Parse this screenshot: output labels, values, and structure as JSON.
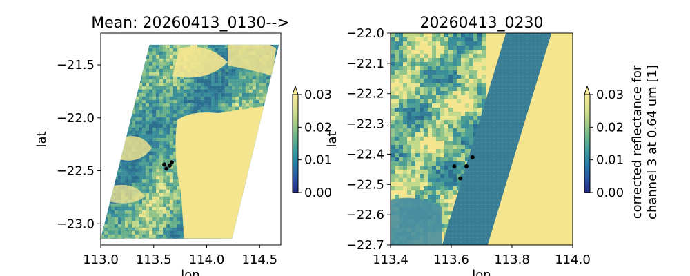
{
  "chart_data": [
    {
      "type": "heatmap",
      "title": "Mean: 20260413_0130-->",
      "xlabel": "lon",
      "ylabel": "lat",
      "xlim": [
        113.0,
        114.7
      ],
      "ylim": [
        -23.2,
        -21.2
      ],
      "xticks": [
        113.0,
        113.5,
        114.0,
        114.5
      ],
      "xtick_labels": [
        "113.0",
        "113.5",
        "114.0",
        "114.5"
      ],
      "yticks": [
        -21.5,
        -22.0,
        -22.5,
        -23.0
      ],
      "ytick_labels": [
        "−21.5",
        "−22.0",
        "−22.5",
        "−23.0"
      ],
      "swath_corners": [
        [
          113.46,
          -21.31
        ],
        [
          114.68,
          -21.31
        ],
        [
          114.24,
          -23.14
        ],
        [
          113.0,
          -23.14
        ]
      ],
      "cloud_free_region": {
        "lon_min": 113.72,
        "lat_min": -23.14,
        "lat_max": -21.93
      },
      "markers": [
        {
          "lon": 113.6,
          "lat": -22.44
        },
        {
          "lon": 113.62,
          "lat": -22.48
        },
        {
          "lon": 113.65,
          "lat": -22.45
        },
        {
          "lon": 113.67,
          "lat": -22.42
        }
      ],
      "colorbar": {
        "vmin": 0.0,
        "vmax": 0.03,
        "ticks": [
          0.0,
          0.01,
          0.02,
          0.03
        ],
        "tick_labels": [
          "0.00",
          "0.01",
          "0.02",
          "0.03"
        ],
        "extend": "max",
        "label": ""
      }
    },
    {
      "type": "heatmap",
      "title": "20260413_0230",
      "xlabel": "lon",
      "ylabel": "lat",
      "xlim": [
        113.4,
        114.0
      ],
      "ylim": [
        -22.7,
        -22.0
      ],
      "xticks": [
        113.4,
        113.6,
        113.8,
        114.0
      ],
      "xtick_labels": [
        "113.4",
        "113.6",
        "113.8",
        "114.0"
      ],
      "yticks": [
        -22.0,
        -22.1,
        -22.2,
        -22.3,
        -22.4,
        -22.5,
        -22.6,
        -22.7
      ],
      "ytick_labels": [
        "−22.0",
        "−22.1",
        "−22.2",
        "−22.3",
        "−22.4",
        "−22.5",
        "−22.6",
        "−22.7"
      ],
      "dark_band": [
        [
          113.57,
          -22.7
        ],
        [
          113.72,
          -22.7
        ],
        [
          113.93,
          -22.0
        ],
        [
          113.78,
          -22.0
        ]
      ],
      "markers": [
        {
          "lon": 113.61,
          "lat": -22.44
        },
        {
          "lon": 113.63,
          "lat": -22.48
        },
        {
          "lon": 113.65,
          "lat": -22.44
        },
        {
          "lon": 113.67,
          "lat": -22.41
        }
      ],
      "colorbar": {
        "vmin": 0.0,
        "vmax": 0.03,
        "ticks": [
          0.0,
          0.01,
          0.02,
          0.03
        ],
        "tick_labels": [
          "0.00",
          "0.01",
          "0.02",
          "0.03"
        ],
        "extend": "max",
        "label_lines": [
          "corrected reflectance for",
          "channel 3 at 0.64 um [1]"
        ]
      }
    }
  ],
  "colors": {
    "colormap": [
      "#252a85",
      "#2a55a2",
      "#257ba6",
      "#3d9a9c",
      "#6bb58a",
      "#a9cc83",
      "#d9e18f",
      "#f8eb9a"
    ],
    "bright": "#f5e58f",
    "dark_water": "#3a7e96",
    "marker": "#000000"
  }
}
